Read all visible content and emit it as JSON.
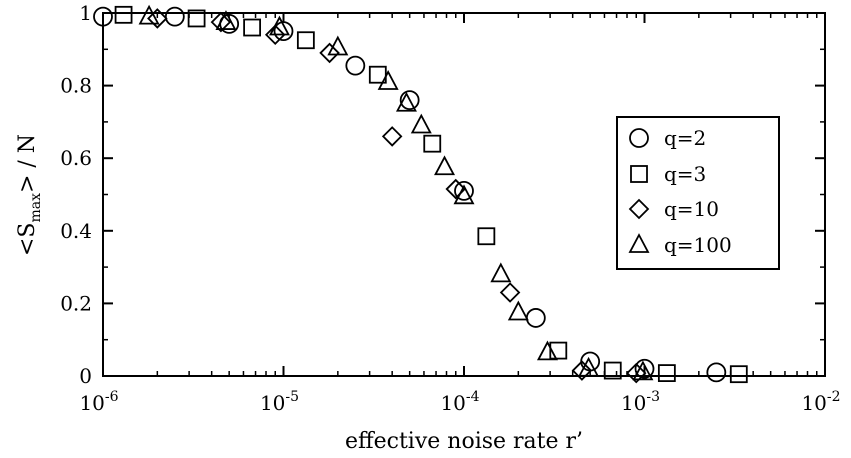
{
  "chart_data": {
    "type": "scatter",
    "xscale": "log",
    "xlim": [
      1e-06,
      0.01
    ],
    "ylim": [
      0,
      1
    ],
    "xlabel": "effective noise rate r’",
    "ylabel": {
      "prefix": "<S",
      "subscript": "max",
      "suffix": "> / N"
    },
    "xticks": [
      {
        "base": "10",
        "exp": "-6",
        "value": 1e-06
      },
      {
        "base": "10",
        "exp": "-5",
        "value": 1e-05
      },
      {
        "base": "10",
        "exp": "-4",
        "value": 0.0001
      },
      {
        "base": "10",
        "exp": "-3",
        "value": 0.001
      },
      {
        "base": "10",
        "exp": "-2",
        "value": 0.01
      }
    ],
    "yticks": [
      {
        "label": "0",
        "value": 0
      },
      {
        "label": "0.2",
        "value": 0.2
      },
      {
        "label": "0.4",
        "value": 0.4
      },
      {
        "label": "0.6",
        "value": 0.6
      },
      {
        "label": "0.8",
        "value": 0.8
      },
      {
        "label": "1",
        "value": 1
      }
    ],
    "grid": false,
    "legend_position": "right",
    "series": [
      {
        "name": "q=2",
        "marker": "circle",
        "points": [
          [
            1e-06,
            0.99
          ],
          [
            2.5e-06,
            0.99
          ],
          [
            5e-06,
            0.97
          ],
          [
            1e-05,
            0.95
          ],
          [
            2.5e-05,
            0.855
          ],
          [
            5e-05,
            0.76
          ],
          [
            0.0001,
            0.51
          ],
          [
            0.00025,
            0.16
          ],
          [
            0.0005,
            0.04
          ],
          [
            0.001,
            0.02
          ],
          [
            0.0025,
            0.01
          ]
        ]
      },
      {
        "name": "q=3",
        "marker": "square",
        "points": [
          [
            1.3e-06,
            0.995
          ],
          [
            3.3e-06,
            0.985
          ],
          [
            6.7e-06,
            0.96
          ],
          [
            1.33e-05,
            0.925
          ],
          [
            3.33e-05,
            0.83
          ],
          [
            6.67e-05,
            0.64
          ],
          [
            0.000133,
            0.385
          ],
          [
            0.000333,
            0.07
          ],
          [
            0.000667,
            0.015
          ],
          [
            0.00133,
            0.008
          ],
          [
            0.00333,
            0.005
          ]
        ]
      },
      {
        "name": "q=10",
        "marker": "diamond",
        "points": [
          [
            2e-06,
            0.985
          ],
          [
            4.5e-06,
            0.975
          ],
          [
            9e-06,
            0.94
          ],
          [
            1.8e-05,
            0.89
          ],
          [
            4e-05,
            0.66
          ],
          [
            9e-05,
            0.515
          ],
          [
            0.00018,
            0.23
          ],
          [
            0.00045,
            0.015
          ],
          [
            0.0009,
            0.008
          ]
        ]
      },
      {
        "name": "q=100",
        "marker": "triangle",
        "points": [
          [
            1.8e-06,
            0.99
          ],
          [
            4.8e-06,
            0.975
          ],
          [
            9.5e-06,
            0.96
          ],
          [
            2e-05,
            0.905
          ],
          [
            3.8e-05,
            0.81
          ],
          [
            4.8e-05,
            0.75
          ],
          [
            5.8e-05,
            0.69
          ],
          [
            7.8e-05,
            0.575
          ],
          [
            0.0001,
            0.495
          ],
          [
            0.00016,
            0.28
          ],
          [
            0.0002,
            0.175
          ],
          [
            0.00029,
            0.065
          ],
          [
            0.00049,
            0.02
          ],
          [
            0.00098,
            0.01
          ]
        ]
      }
    ]
  }
}
